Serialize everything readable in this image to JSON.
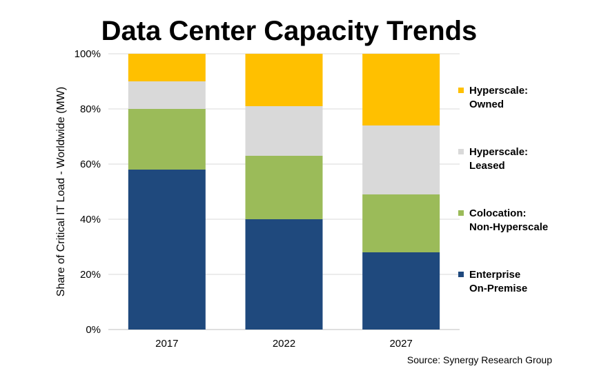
{
  "chart_data": {
    "type": "bar",
    "stacked": true,
    "title": "Data Center Capacity Trends",
    "ylabel": "Share of Critical IT Load - Worldwide (MW)",
    "xlabel": "",
    "ylim": [
      0,
      100
    ],
    "y_ticks": [
      "0%",
      "20%",
      "40%",
      "60%",
      "80%",
      "100%"
    ],
    "grid": true,
    "legend_position": "right",
    "categories": [
      "2017",
      "2022",
      "2027"
    ],
    "series": [
      {
        "name": "Enterprise On-Premise",
        "label_lines": [
          "Enterprise",
          "On-Premise"
        ],
        "color": "#1f497d",
        "values": [
          58,
          40,
          28
        ]
      },
      {
        "name": "Colocation: Non-Hyperscale",
        "label_lines": [
          "Colocation:",
          "Non-Hyperscale"
        ],
        "color": "#9bbb59",
        "values": [
          22,
          23,
          21
        ]
      },
      {
        "name": "Hyperscale: Leased",
        "label_lines": [
          "Hyperscale:",
          "Leased"
        ],
        "color": "#d9d9d9",
        "values": [
          10,
          18,
          25
        ]
      },
      {
        "name": "Hyperscale: Owned",
        "label_lines": [
          "Hyperscale:",
          "Owned"
        ],
        "color": "#ffc000",
        "values": [
          10,
          19,
          26
        ]
      }
    ],
    "source": "Source: Synergy Research Group"
  }
}
